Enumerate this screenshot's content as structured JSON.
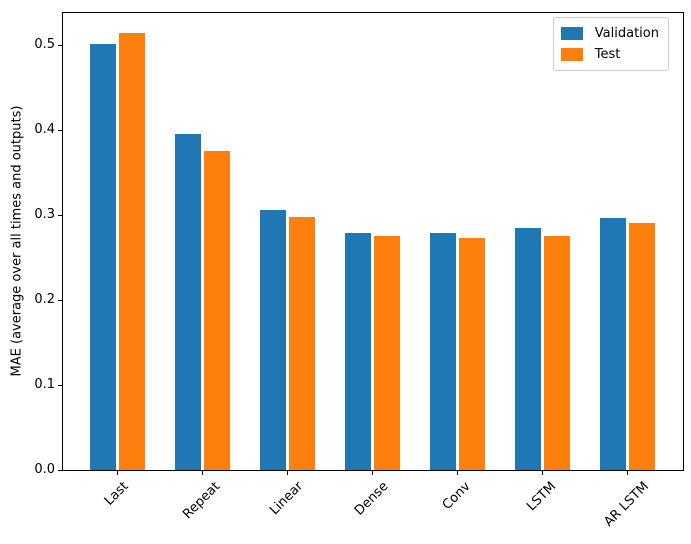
{
  "chart_data": {
    "type": "bar",
    "title": "",
    "xlabel": "",
    "ylabel": "MAE (average over all times and outputs)",
    "categories": [
      "Last",
      "Repeat",
      "Linear",
      "Dense",
      "Conv",
      "LSTM",
      "AR LSTM"
    ],
    "series": [
      {
        "name": "Validation",
        "color": "#1f77b4",
        "values": [
          0.501,
          0.396,
          0.306,
          0.279,
          0.279,
          0.285,
          0.297
        ]
      },
      {
        "name": "Test",
        "color": "#ff7f0e",
        "values": [
          0.515,
          0.376,
          0.298,
          0.275,
          0.273,
          0.276,
          0.291
        ]
      }
    ],
    "yticks": [
      0.0,
      0.1,
      0.2,
      0.3,
      0.4,
      0.5
    ],
    "ylim": [
      0,
      0.538
    ],
    "grid": false,
    "legend_position": "upper right",
    "xtick_rotation_deg": 45,
    "bar_width_units": 0.3,
    "bar_offset_units": 0.17
  }
}
